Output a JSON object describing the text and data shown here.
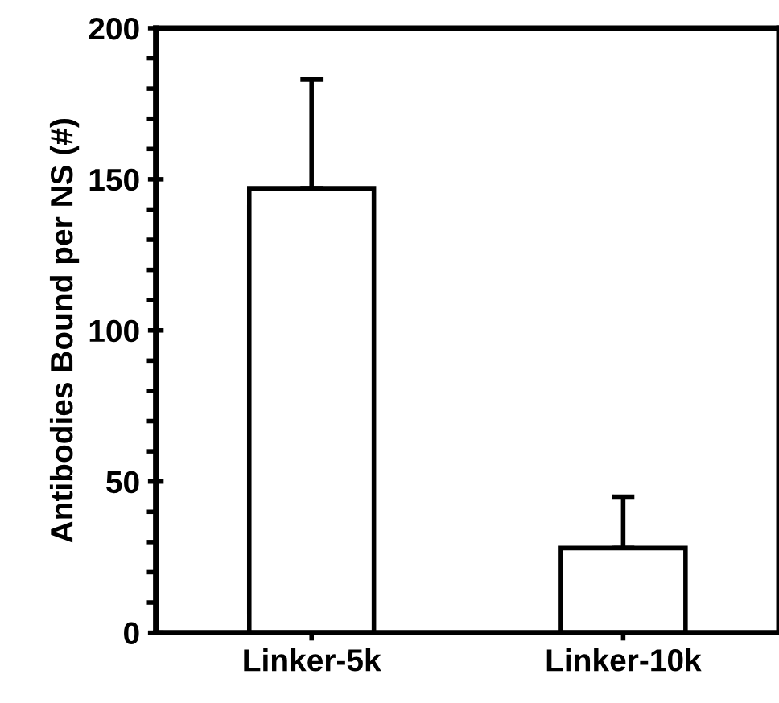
{
  "chart_data": {
    "type": "bar",
    "ylabel": "Antibodies Bound per NS (#)",
    "categories": [
      "Linker-5k",
      "Linker-10k"
    ],
    "values": [
      147,
      28
    ],
    "errors": [
      [
        147,
        183
      ],
      [
        28,
        45
      ]
    ],
    "color": "#ffffff",
    "ylim": [
      0,
      200
    ],
    "yticks": [
      0,
      50,
      100,
      150,
      200
    ],
    "grid": false
  }
}
